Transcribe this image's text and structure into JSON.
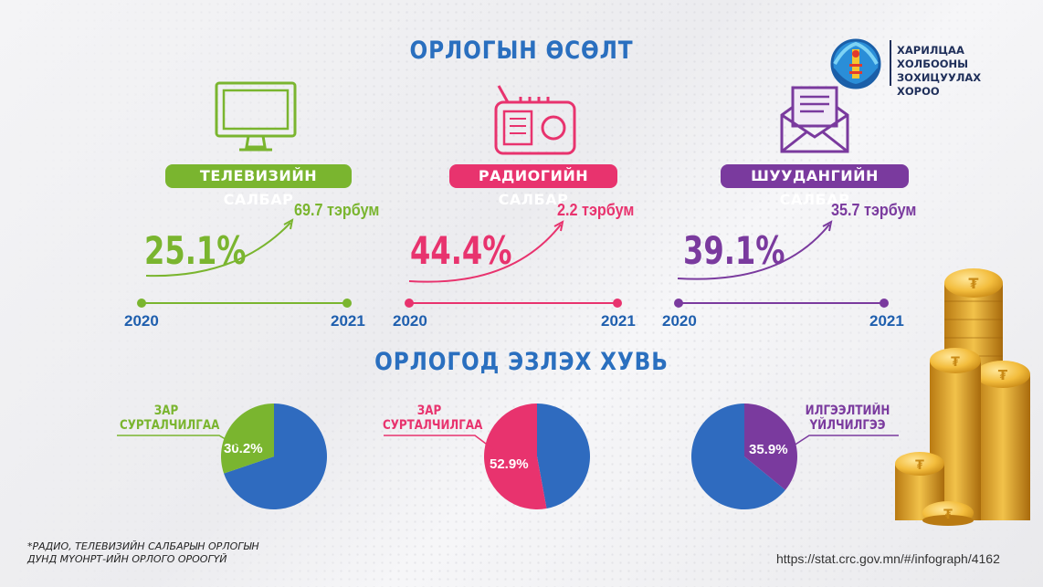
{
  "logo": {
    "text_line1": "ХАРИЛЦАА ХОЛБООНЫ",
    "text_line2": "ЗОХИЦУУЛАХ",
    "text_line3": "ХОРОО",
    "icon": "mongolia-soyombo-emblem"
  },
  "growth_title": "ОРЛОГЫН ӨСӨЛТ",
  "share_title": "ОРЛОГОД ЭЗЛЭХ ХУВЬ",
  "sectors": [
    {
      "icon": "tv-monitor-icon",
      "label": "ТЕЛЕВИЗИЙН САЛБАР",
      "color": "#7ab52f",
      "growth": "25.1%",
      "amount": "69.7 тэрбум",
      "year_start": "2020",
      "year_end": "2021",
      "pie_label_line1": "ЗАР",
      "pie_label_line2": "СУРТАЛЧИЛГАА",
      "pie_value": "30.2%"
    },
    {
      "icon": "radio-icon",
      "label": "РАДИОГИЙН САЛБАР",
      "color": "#e8336e",
      "growth": "44.4%",
      "amount": "2.2 тэрбум",
      "year_start": "2020",
      "year_end": "2021",
      "pie_label_line1": "ЗАР",
      "pie_label_line2": "СУРТАЛЧИЛГАА",
      "pie_value": "52.9%"
    },
    {
      "icon": "envelope-letter-icon",
      "label": "ШУУДАНГИЙН САЛБАР",
      "color": "#7a3a9e",
      "growth": "39.1%",
      "amount": "35.7 тэрбум",
      "year_start": "2020",
      "year_end": "2021",
      "pie_label_line1": "ИЛГЭЭЛТИЙН",
      "pie_label_line2": "ҮЙЛЧИЛГЭЭ",
      "pie_value": "35.9%"
    }
  ],
  "pie_rest_color": "#2f6bbf",
  "chart_data": [
    {
      "type": "pie",
      "slices": [
        {
          "name": "ЗАР СУРТАЛЧИЛГАА",
          "value": 30.2
        },
        {
          "name": "",
          "value": 69.8
        }
      ]
    },
    {
      "type": "pie",
      "slices": [
        {
          "name": "ЗАР СУРТАЛЧИЛГАА",
          "value": 52.9
        },
        {
          "name": "",
          "value": 47.1
        }
      ]
    },
    {
      "type": "pie",
      "slices": [
        {
          "name": "ИЛГЭЭЛТИЙН ҮЙЛЧИЛГЭЭ",
          "value": 35.9
        },
        {
          "name": "",
          "value": 64.1
        }
      ]
    }
  ],
  "footnote_line1": "*РАДИО, ТЕЛЕВИЗИЙН САЛБАРЫН ОРЛОГЫН",
  "footnote_line2": "ДУНД МҮОНРТ-ИЙН ОРЛОГО ОРООГҮЙ",
  "url": "https://stat.crc.gov.mn/#/infograph/4162",
  "decor_icon": "gold-coins-stack"
}
